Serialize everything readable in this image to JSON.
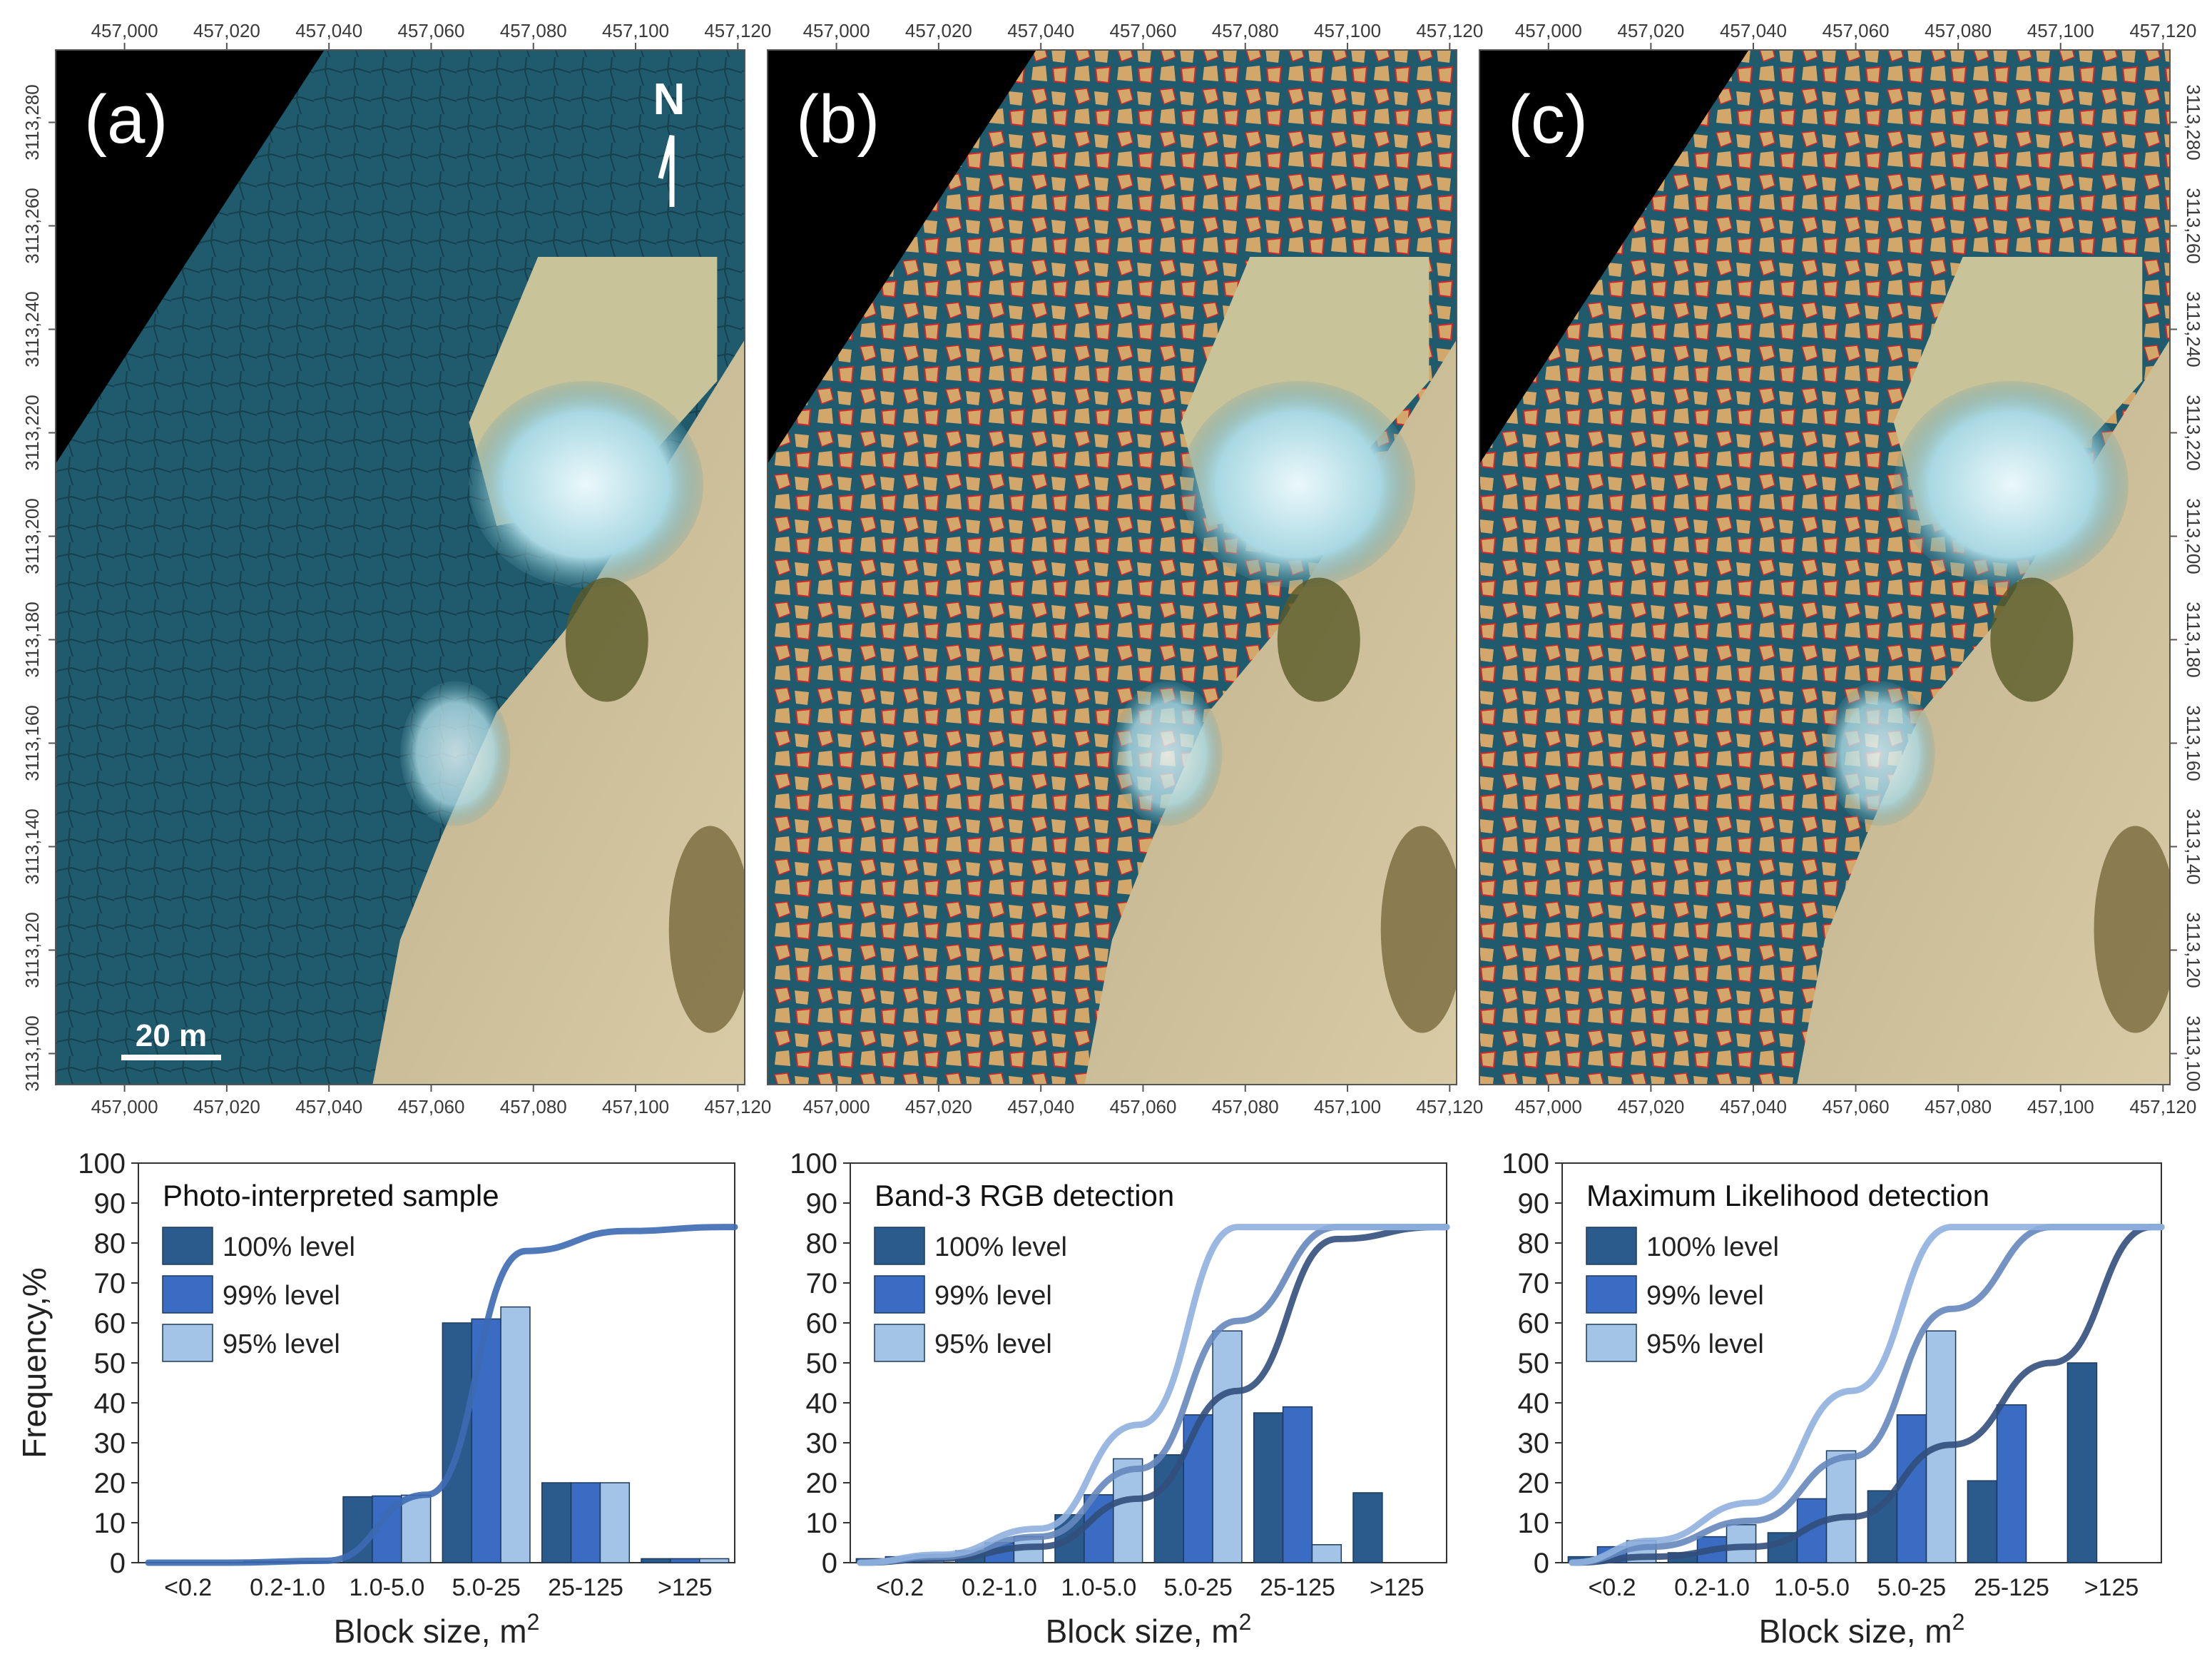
{
  "maps": {
    "x_tick_labels": [
      "457,000",
      "457,020",
      "457,040",
      "457,060",
      "457,080",
      "457,100",
      "457,120"
    ],
    "y_tick_labels": [
      "3113,280",
      "3113,260",
      "3113,240",
      "3113,220",
      "3113,200",
      "3113,180",
      "3113,160",
      "3113,140",
      "3113,120",
      "3113,100"
    ],
    "panels": [
      {
        "label": "(a)",
        "overlay": false
      },
      {
        "label": "(b)",
        "overlay": true
      },
      {
        "label": "(c)",
        "overlay": true
      }
    ],
    "north_label": "N",
    "scale_label": "20 m",
    "colors": {
      "black_corner": "#000000",
      "water": "#1f5a6d",
      "detected_blocks": "#d2a769",
      "outline": "#d62728",
      "land": "#cbbd97",
      "foam": "#d9f0f5"
    }
  },
  "chart_data": [
    {
      "type": "bar",
      "title": "Photo-interpreted sample",
      "categories": [
        "<0.2",
        "0.2-1.0",
        "1.0-5.0",
        "5.0-25",
        "25-125",
        ">125"
      ],
      "xlabel": "Block size, m",
      "xlabel_sup": "2",
      "ylabel": "Frequency,%",
      "ylim": [
        0,
        100
      ],
      "yticks": [
        "0",
        "10",
        "20",
        "30",
        "40",
        "50",
        "60",
        "70",
        "80",
        "90",
        "100"
      ],
      "legend": "top-left",
      "series": [
        {
          "name": "100% level",
          "color": "#2a5b8c",
          "values": [
            0,
            0.3,
            16.5,
            60,
            20,
            1
          ]
        },
        {
          "name": "99% level",
          "color": "#3a6cc4",
          "values": [
            0,
            0.3,
            16.7,
            61,
            20,
            1
          ]
        },
        {
          "name": "95% level",
          "color": "#a3c4e6",
          "values": [
            0,
            0.3,
            16.9,
            64,
            20,
            1
          ]
        }
      ],
      "cumulative": [
        {
          "color": "#3d6ab3",
          "values": [
            0,
            0.5,
            17,
            78,
            83,
            84
          ]
        }
      ]
    },
    {
      "type": "bar",
      "title": "Band-3 RGB detection",
      "categories": [
        "<0.2",
        "0.2-1.0",
        "1.0-5.0",
        "5.0-25",
        "25-125",
        ">125"
      ],
      "xlabel": "Block size, m",
      "xlabel_sup": "2",
      "ylabel": "",
      "ylim": [
        0,
        100
      ],
      "yticks": [
        "0",
        "10",
        "20",
        "30",
        "40",
        "50",
        "60",
        "70",
        "80",
        "90",
        "100"
      ],
      "legend": "top-left",
      "series": [
        {
          "name": "100% level",
          "color": "#2a5b8c",
          "values": [
            1,
            3,
            12,
            27,
            37.5,
            17.5
          ]
        },
        {
          "name": "99% level",
          "color": "#3a6cc4",
          "values": [
            1.5,
            5,
            17,
            37,
            39,
            0
          ]
        },
        {
          "name": "95% level",
          "color": "#a3c4e6",
          "values": [
            2,
            6.5,
            26,
            58,
            4.5,
            0
          ]
        }
      ],
      "cumulative": [
        {
          "color": "#324f7c",
          "values": [
            1,
            4,
            16,
            43,
            81,
            84
          ]
        },
        {
          "color": "#6587bd",
          "values": [
            1.5,
            6.5,
            23.5,
            60.5,
            84,
            84
          ]
        },
        {
          "color": "#8fb0de",
          "values": [
            2,
            8.5,
            34.5,
            84,
            84,
            84
          ]
        }
      ]
    },
    {
      "type": "bar",
      "title": "Maximum Likelihood detection",
      "categories": [
        "<0.2",
        "0.2-1.0",
        "1.0-5.0",
        "5.0-25",
        "25-125",
        ">125"
      ],
      "xlabel": "Block size, m",
      "xlabel_sup": "2",
      "ylabel": "",
      "ylim": [
        0,
        100
      ],
      "yticks": [
        "0",
        "10",
        "20",
        "30",
        "40",
        "50",
        "60",
        "70",
        "80",
        "90",
        "100"
      ],
      "legend": "top-left",
      "series": [
        {
          "name": "100% level",
          "color": "#2a5b8c",
          "values": [
            1.5,
            2.5,
            7.5,
            18,
            20.5,
            50
          ]
        },
        {
          "name": "99% level",
          "color": "#3a6cc4",
          "values": [
            4,
            6.5,
            16,
            37,
            39.5,
            0
          ]
        },
        {
          "name": "95% level",
          "color": "#a3c4e6",
          "values": [
            5.5,
            9.5,
            28,
            58,
            0,
            0
          ]
        }
      ],
      "cumulative": [
        {
          "color": "#324f7c",
          "values": [
            1.5,
            4,
            11.5,
            29.5,
            50,
            84
          ]
        },
        {
          "color": "#6587bd",
          "values": [
            4,
            10.5,
            26.5,
            63.5,
            84,
            84
          ]
        },
        {
          "color": "#8fb0de",
          "values": [
            5.5,
            15,
            43,
            84,
            84,
            84
          ]
        }
      ]
    }
  ]
}
